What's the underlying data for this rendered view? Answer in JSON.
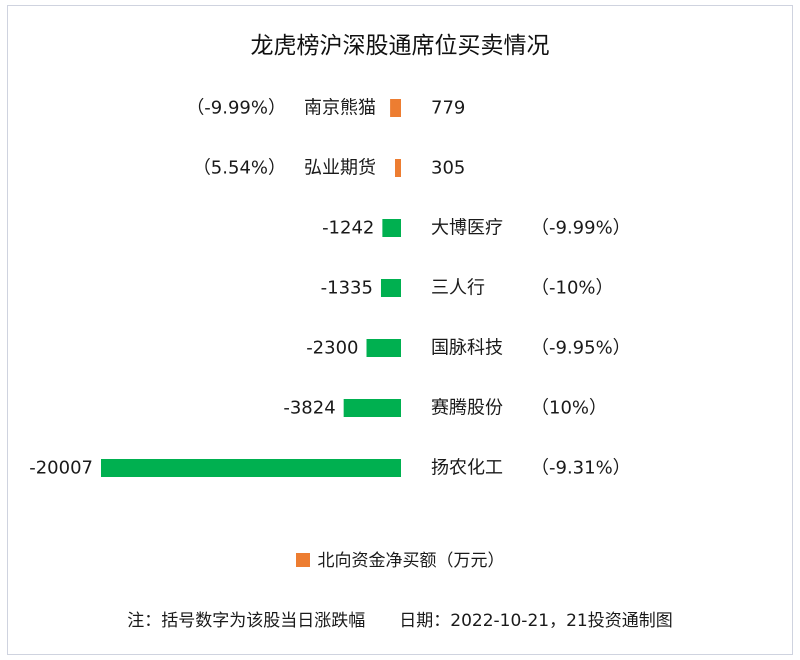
{
  "chart_data": {
    "type": "bar",
    "orientation": "horizontal",
    "title": "龙虎榜沪深股通席位买卖情况",
    "categories": [
      "南京熊猫",
      "弘业期货",
      "大博医疗",
      "三人行",
      "国脉科技",
      "赛腾股份",
      "扬农化工"
    ],
    "pct_labels": [
      "（-9.99%）",
      "（5.54%）",
      "（-9.99%）",
      "（-10%）",
      "（-9.95%）",
      "（10%）",
      "（-9.31%）"
    ],
    "series": [
      {
        "name": "北向资金净买额（万元）",
        "values": [
          779,
          305,
          -1242,
          -1335,
          -2300,
          -3824,
          -20007
        ]
      }
    ],
    "colors": {
      "positive": "#ed7d31",
      "negative": "#00b050"
    },
    "legend": {
      "position": "bottom",
      "label": "北向资金净买额（万元）",
      "color": "#ed7d31"
    },
    "grid": false
  },
  "footer": {
    "note": "注：括号数字为该股当日涨跌幅",
    "date": "日期：2022-10-21，21投资通制图"
  }
}
